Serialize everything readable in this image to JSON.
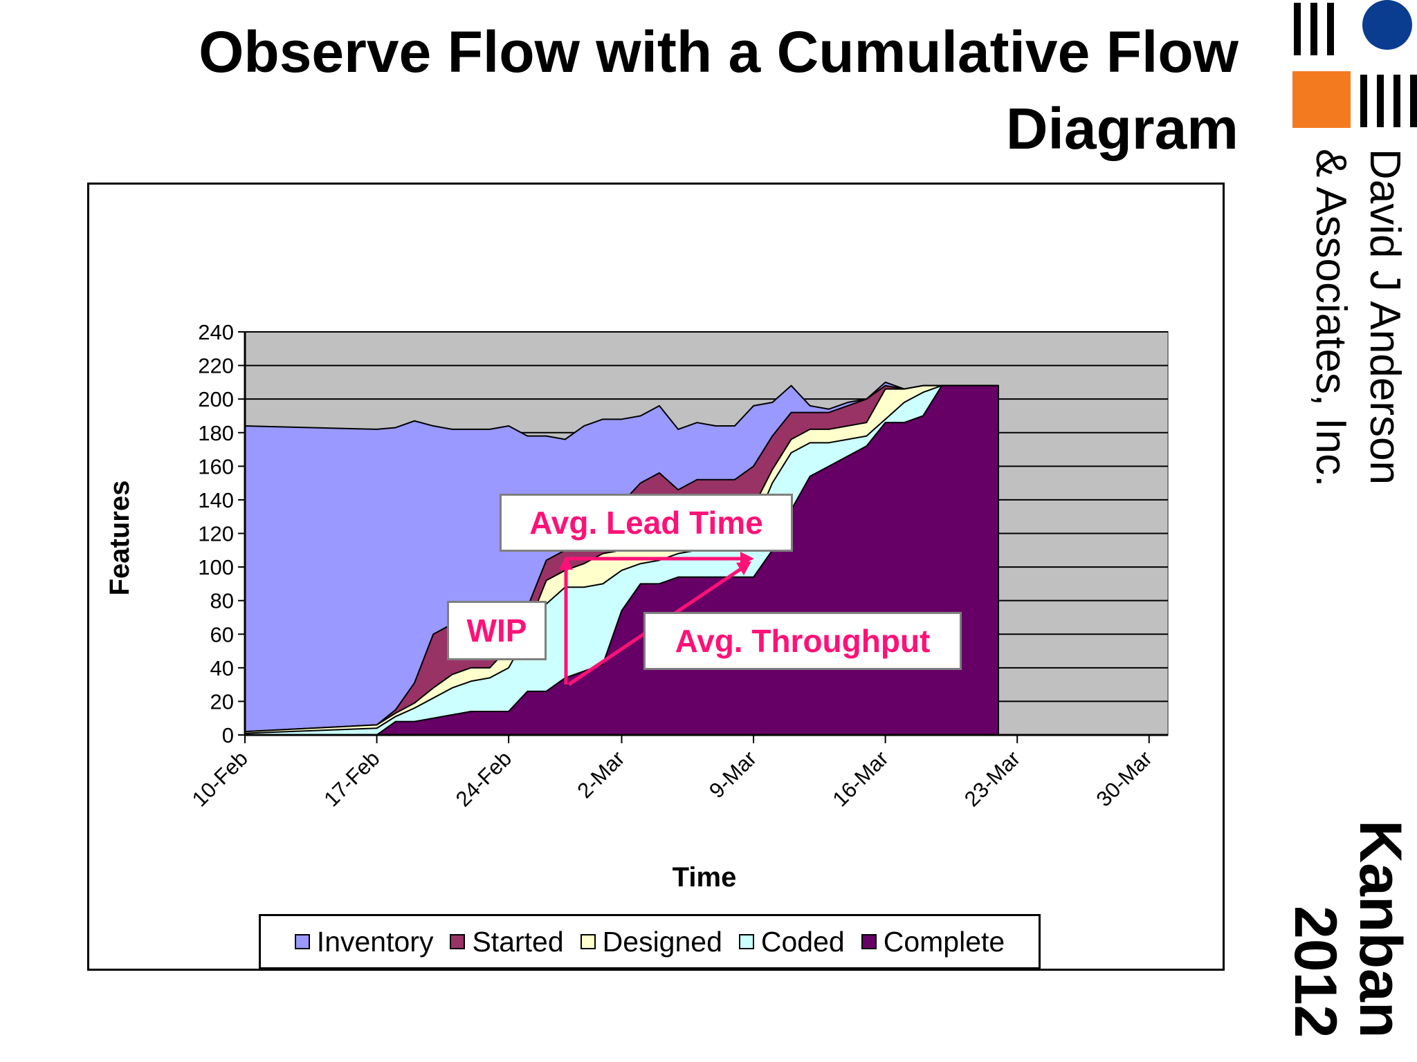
{
  "slide": {
    "title": "Observe Flow with a Cumulative Flow Diagram",
    "company": [
      "David J Anderson",
      "& Associates, Inc."
    ],
    "event": [
      "Kanban",
      "2012"
    ]
  },
  "colors": {
    "inventory": "#9999ff",
    "started": "#993366",
    "designed": "#ffffcc",
    "coded": "#ccffff",
    "complete": "#660066",
    "plot_bg": "#c0c0c0",
    "callout_text": "#ff1177",
    "logo_blue": "#0a3d8f",
    "logo_orange": "#f47a20"
  },
  "callouts": {
    "lead_time": "Avg. Lead Time",
    "wip": "WIP",
    "throughput": "Avg. Throughput"
  },
  "chart_data": {
    "type": "area",
    "stacked": true,
    "xlabel": "Time",
    "ylabel": "Features",
    "ylim": [
      0,
      240
    ],
    "yticks": [
      0,
      20,
      40,
      60,
      80,
      100,
      120,
      140,
      160,
      180,
      200,
      220,
      240
    ],
    "xticks": [
      "10-Feb",
      "17-Feb",
      "24-Feb",
      "2-Mar",
      "9-Mar",
      "16-Mar",
      "23-Mar",
      "30-Mar"
    ],
    "grid": true,
    "legend_position": "bottom",
    "x": [
      "10-Feb",
      "17-Feb",
      "18-Feb",
      "19-Feb",
      "20-Feb",
      "21-Feb",
      "22-Feb",
      "23-Feb",
      "24-Feb",
      "25-Feb",
      "26-Feb",
      "27-Feb",
      "28-Feb",
      "1-Mar",
      "2-Mar",
      "3-Mar",
      "4-Mar",
      "5-Mar",
      "6-Mar",
      "7-Mar",
      "8-Mar",
      "9-Mar",
      "10-Mar",
      "11-Mar",
      "12-Mar",
      "13-Mar",
      "14-Mar",
      "15-Mar",
      "16-Mar",
      "17-Mar",
      "18-Mar",
      "19-Mar",
      "20-Mar",
      "21-Mar",
      "22-Mar"
    ],
    "series": [
      {
        "name": "Complete",
        "values": [
          0,
          0,
          8,
          8,
          10,
          12,
          14,
          14,
          14,
          26,
          26,
          34,
          38,
          42,
          74,
          90,
          90,
          94,
          94,
          94,
          94,
          94,
          110,
          134,
          154,
          160,
          166,
          172,
          186,
          186,
          190,
          208,
          208,
          208,
          208
        ]
      },
      {
        "name": "Coded",
        "values": [
          1,
          4,
          3,
          8,
          12,
          16,
          18,
          20,
          26,
          34,
          52,
          54,
          50,
          48,
          24,
          12,
          14,
          14,
          16,
          22,
          22,
          30,
          40,
          34,
          20,
          14,
          10,
          6,
          2,
          12,
          14,
          0,
          0,
          0,
          0
        ]
      },
      {
        "name": "Designed",
        "values": [
          1,
          2,
          2,
          3,
          6,
          8,
          8,
          6,
          12,
          4,
          14,
          10,
          14,
          18,
          12,
          14,
          16,
          16,
          18,
          12,
          12,
          12,
          8,
          8,
          8,
          8,
          8,
          8,
          18,
          8,
          4,
          0,
          0,
          0,
          0
        ]
      },
      {
        "name": "Started",
        "values": [
          0,
          0,
          2,
          12,
          32,
          30,
          32,
          32,
          20,
          12,
          12,
          12,
          12,
          14,
          28,
          34,
          36,
          22,
          24,
          24,
          24,
          24,
          20,
          16,
          10,
          10,
          12,
          14,
          2,
          0,
          0,
          0,
          0,
          0,
          0
        ]
      },
      {
        "name": "Inventory",
        "values": [
          182,
          176,
          168,
          156,
          124,
          116,
          110,
          110,
          112,
          102,
          74,
          66,
          70,
          66,
          50,
          40,
          40,
          36,
          34,
          32,
          32,
          36,
          20,
          16,
          4,
          2,
          2,
          0,
          2,
          0,
          0,
          0,
          0,
          0,
          0
        ]
      }
    ]
  }
}
